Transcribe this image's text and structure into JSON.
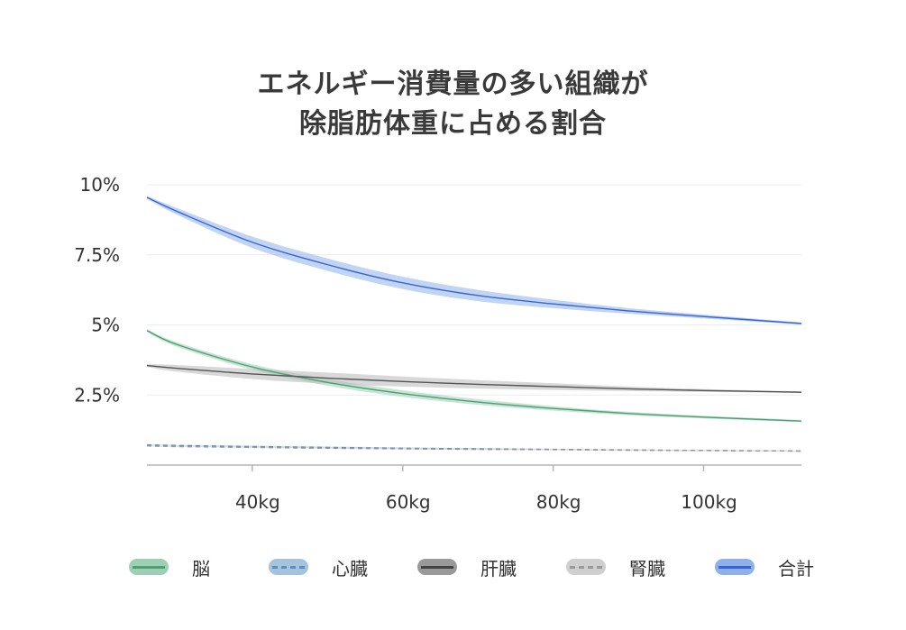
{
  "title_lines": [
    "エネルギー消費量の多い組織が",
    "除脂肪体重に占める割合"
  ],
  "chart_data": {
    "type": "line",
    "title": "エネルギー消費量の多い組織が除脂肪体重に占める割合",
    "xlabel": "",
    "ylabel": "",
    "xlim": [
      26,
      113
    ],
    "ylim": [
      0,
      10
    ],
    "x_ticks": [
      40,
      60,
      80,
      100
    ],
    "x_tick_labels": [
      "40kg",
      "60kg",
      "80kg",
      "100kg"
    ],
    "y_ticks": [
      10,
      7.5,
      5,
      2.5
    ],
    "y_tick_labels": [
      "10%",
      "7.5%",
      "5%",
      "2.5%"
    ],
    "grid": true,
    "x": [
      26,
      30,
      40,
      50,
      60,
      70,
      80,
      90,
      100,
      113
    ],
    "series": [
      {
        "name": "脳",
        "style": "solid",
        "color": "#4f9e74",
        "band_color": "#9ccfb4",
        "values": [
          4.8,
          4.3,
          3.5,
          2.95,
          2.55,
          2.25,
          2.02,
          1.84,
          1.71,
          1.57
        ],
        "band": [
          0.05,
          0.08,
          0.1,
          0.12,
          0.12,
          0.1,
          0.08,
          0.06,
          0.05,
          0.04
        ]
      },
      {
        "name": "心臓",
        "style": "dashed",
        "color": "#5b8fbf",
        "band_color": "#a6c3dd",
        "values": [
          0.72,
          0.7,
          0.66,
          0.63,
          0.6,
          0.58,
          0.56,
          0.54,
          0.52,
          0.5
        ],
        "band": [
          0.02,
          0.02,
          0.03,
          0.03,
          0.03,
          0.03,
          0.02,
          0.02,
          0.02,
          0.02
        ]
      },
      {
        "name": "肝臓",
        "style": "solid",
        "color": "#555555",
        "band_color": "#b8b8b8",
        "values": [
          3.55,
          3.45,
          3.25,
          3.1,
          2.98,
          2.88,
          2.8,
          2.72,
          2.66,
          2.6
        ],
        "band": [
          0.05,
          0.12,
          0.18,
          0.2,
          0.18,
          0.15,
          0.12,
          0.08,
          0.05,
          0.03
        ]
      },
      {
        "name": "腎臓",
        "style": "dashed",
        "color": "#9a9a9a",
        "band_color": "#d4d4d4",
        "values": [
          0.68,
          0.66,
          0.63,
          0.6,
          0.58,
          0.56,
          0.55,
          0.53,
          0.52,
          0.5
        ],
        "band": [
          0.02,
          0.02,
          0.02,
          0.02,
          0.02,
          0.02,
          0.02,
          0.02,
          0.02,
          0.02
        ]
      },
      {
        "name": "合計",
        "style": "solid",
        "color": "#3866d0",
        "band_color": "#8fb0ea",
        "values": [
          9.55,
          9.05,
          7.95,
          7.15,
          6.5,
          6.05,
          5.75,
          5.5,
          5.3,
          5.05
        ],
        "band": [
          0.05,
          0.12,
          0.2,
          0.22,
          0.22,
          0.2,
          0.15,
          0.1,
          0.07,
          0.04
        ]
      }
    ]
  },
  "legend": [
    {
      "label": "脳",
      "color": "#4f9e74",
      "fill": "#9ccfb4",
      "style": "solid"
    },
    {
      "label": "心臓",
      "color": "#5b8fbf",
      "fill": "#a6c3dd",
      "style": "dashed"
    },
    {
      "label": "肝臓",
      "color": "#444444",
      "fill": "#999999",
      "style": "solid"
    },
    {
      "label": "腎臓",
      "color": "#9a9a9a",
      "fill": "#cfcfcf",
      "style": "dashed"
    },
    {
      "label": "合計",
      "color": "#3866d0",
      "fill": "#8fb0ea",
      "style": "solid"
    }
  ]
}
